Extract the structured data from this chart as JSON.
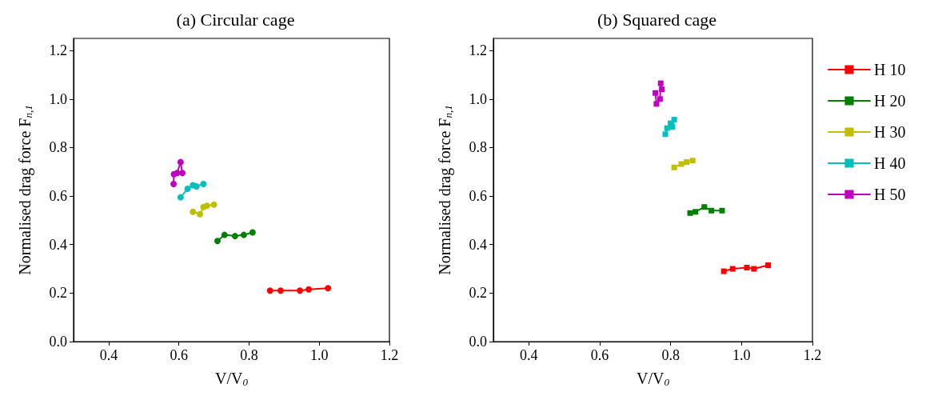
{
  "chart_data": [
    {
      "type": "line",
      "title": "(a) Circular cage",
      "xlabel": "V/V$_{0}$",
      "ylabel": "Normalised drag force F$_{n,1}$",
      "marker": "circle",
      "legend": false,
      "grid": false,
      "xlim": [
        0.3,
        1.2
      ],
      "ylim": [
        0,
        1.25
      ],
      "xticks": [
        {
          "value": 0.4,
          "label": "0.4"
        },
        {
          "value": 0.6,
          "label": "0.6"
        },
        {
          "value": 0.8,
          "label": "0.8"
        },
        {
          "value": 1,
          "label": "1.0"
        },
        {
          "value": 1.2,
          "label": "1.2"
        }
      ],
      "yticks": [
        {
          "value": 0,
          "label": "0.0"
        },
        {
          "value": 0.2,
          "label": "0.2"
        },
        {
          "value": 0.4,
          "label": "0.4"
        },
        {
          "value": 0.6,
          "label": "0.6"
        },
        {
          "value": 0.8,
          "label": "0.8"
        },
        {
          "value": 1,
          "label": "1.0"
        },
        {
          "value": 1.2,
          "label": "1.2"
        }
      ],
      "series": [
        {
          "color": "#ff0000",
          "x": [
            0.86,
            0.89,
            0.945,
            0.97,
            1.025
          ],
          "values": [
            0.21,
            0.21,
            0.21,
            0.215,
            0.22
          ]
        },
        {
          "color": "#008000",
          "x": [
            0.71,
            0.73,
            0.76,
            0.785,
            0.81
          ],
          "values": [
            0.415,
            0.44,
            0.435,
            0.44,
            0.45
          ]
        },
        {
          "color": "#bfbf00",
          "x": [
            0.64,
            0.66,
            0.67,
            0.68,
            0.7
          ],
          "values": [
            0.535,
            0.525,
            0.555,
            0.56,
            0.565
          ]
        },
        {
          "color": "#00bfbf",
          "x": [
            0.605,
            0.625,
            0.64,
            0.65,
            0.67
          ],
          "values": [
            0.595,
            0.63,
            0.645,
            0.64,
            0.65
          ]
        },
        {
          "color": "#bf00bf",
          "x": [
            0.585,
            0.586,
            0.595,
            0.605,
            0.61
          ],
          "values": [
            0.65,
            0.69,
            0.695,
            0.74,
            0.695
          ]
        }
      ]
    },
    {
      "type": "line",
      "title": "(b) Squared cage",
      "xlabel": "V/V$_{0}$",
      "ylabel": "Normalised drag force F$_{n,1}$",
      "marker": "square",
      "legend": "right",
      "grid": false,
      "xlim": [
        0.3,
        1.2
      ],
      "ylim": [
        0,
        1.25
      ],
      "xticks": [
        {
          "value": 0.4,
          "label": "0.4"
        },
        {
          "value": 0.6,
          "label": "0.6"
        },
        {
          "value": 0.8,
          "label": "0.8"
        },
        {
          "value": 1,
          "label": "1.0"
        },
        {
          "value": 1.2,
          "label": "1.2"
        }
      ],
      "yticks": [
        {
          "value": 0,
          "label": "0.0"
        },
        {
          "value": 0.2,
          "label": "0.2"
        },
        {
          "value": 0.4,
          "label": "0.4"
        },
        {
          "value": 0.6,
          "label": "0.6"
        },
        {
          "value": 0.8,
          "label": "0.8"
        },
        {
          "value": 1,
          "label": "1.0"
        },
        {
          "value": 1.2,
          "label": "1.2"
        }
      ],
      "series": [
        {
          "name": "H 10",
          "color": "#ff0000",
          "x": [
            0.95,
            0.975,
            1.015,
            1.035,
            1.075
          ],
          "values": [
            0.29,
            0.3,
            0.305,
            0.3,
            0.315
          ]
        },
        {
          "name": "H 20",
          "color": "#008000",
          "x": [
            0.855,
            0.87,
            0.895,
            0.915,
            0.945
          ],
          "values": [
            0.53,
            0.535,
            0.555,
            0.54,
            0.54
          ]
        },
        {
          "name": "H 30",
          "color": "#bfbf00",
          "x": [
            0.81,
            0.83,
            0.845,
            0.862
          ],
          "values": [
            0.718,
            0.732,
            0.74,
            0.746
          ]
        },
        {
          "name": "H 40",
          "color": "#00bfbf",
          "x": [
            0.785,
            0.79,
            0.8,
            0.805,
            0.81
          ],
          "values": [
            0.855,
            0.88,
            0.9,
            0.885,
            0.915
          ]
        },
        {
          "name": "H 50",
          "color": "#bf00bf",
          "x": [
            0.757,
            0.76,
            0.77,
            0.772,
            0.775
          ],
          "values": [
            1.025,
            0.98,
            1.0,
            1.065,
            1.04
          ]
        }
      ]
    }
  ]
}
